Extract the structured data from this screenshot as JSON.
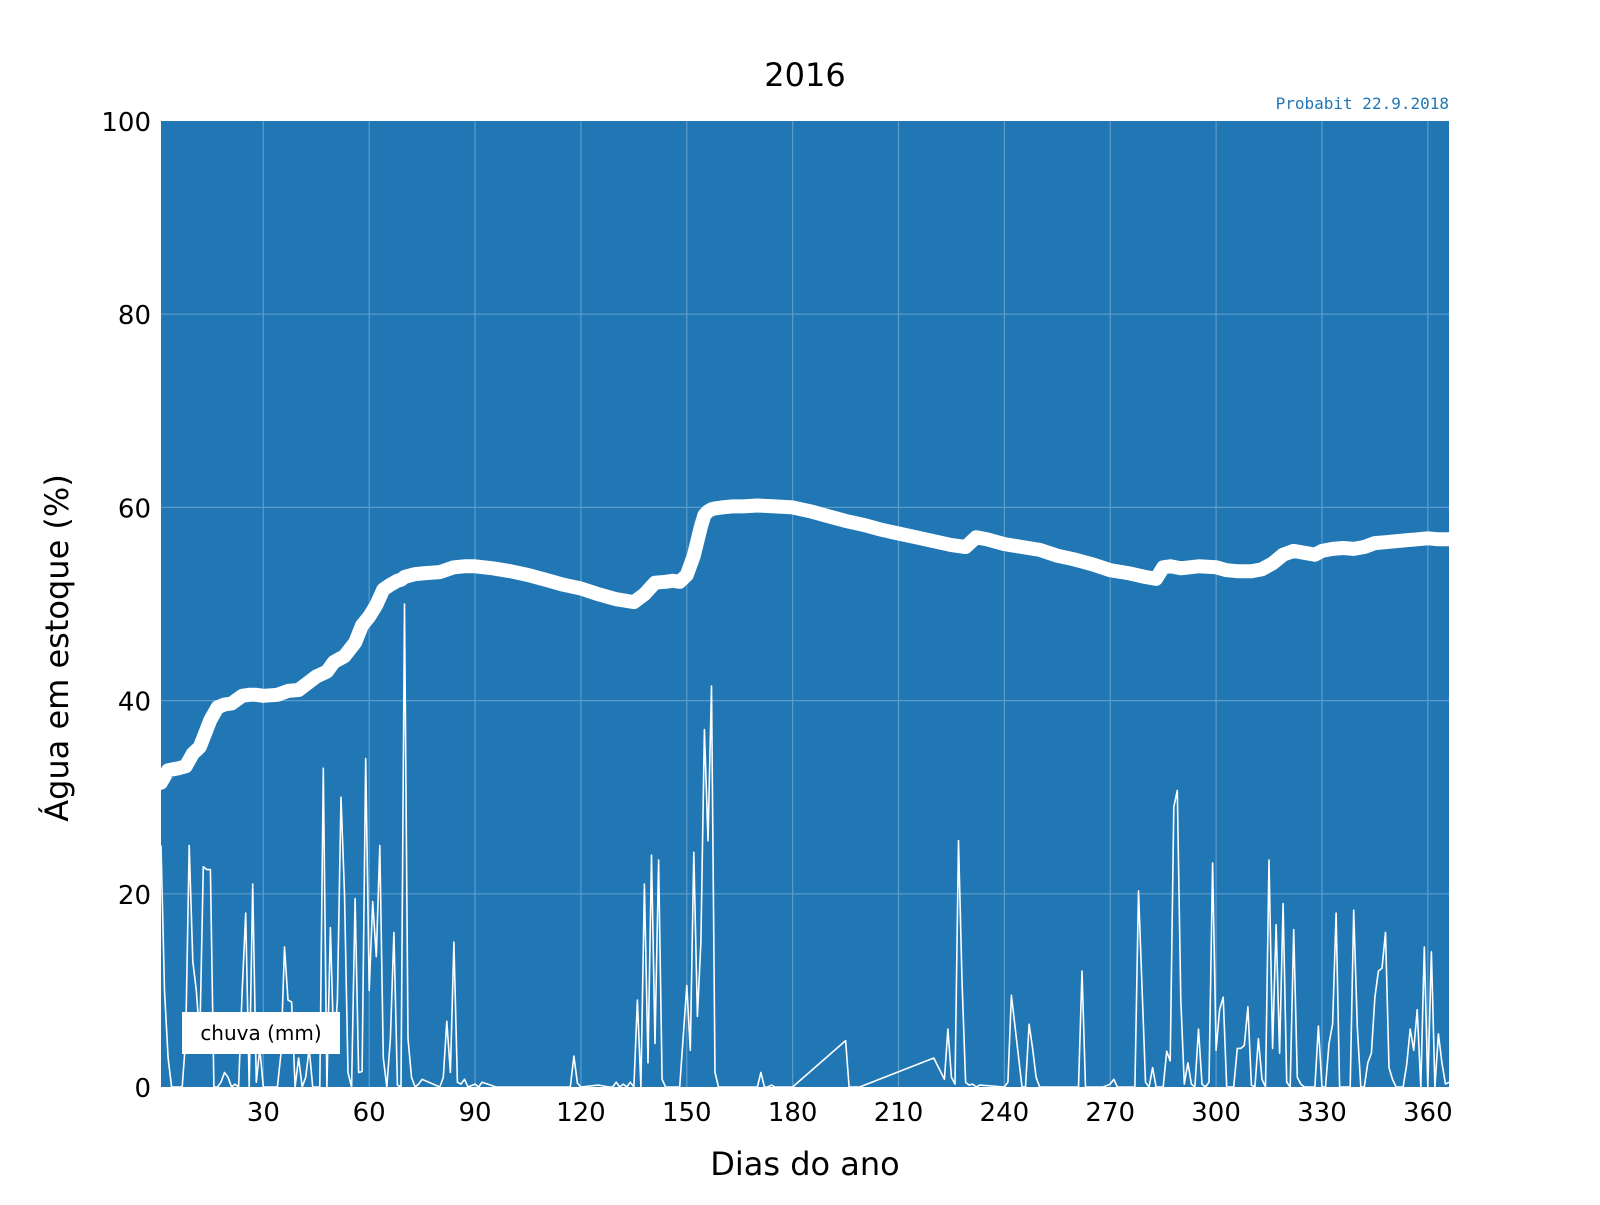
{
  "chart_data": {
    "type": "line",
    "title": "2016",
    "watermark": "Probabit 22.9.2018",
    "xlabel": "Dias do ano",
    "ylabel": "Água em estoque (%)",
    "xlim": [
      1,
      366
    ],
    "ylim": [
      0,
      100
    ],
    "x_ticks": [
      30,
      60,
      90,
      120,
      150,
      180,
      210,
      240,
      270,
      300,
      330,
      360
    ],
    "y_ticks": [
      0,
      20,
      40,
      60,
      80,
      100
    ],
    "grid": true,
    "legend": {
      "position": "bottom-left",
      "entries": [
        "chuva (mm)"
      ]
    },
    "colors": {
      "background": "#2177b4",
      "lines": "#ffffff",
      "grid": "#5b9ccc",
      "watermark": "#2177b4"
    },
    "series": [
      {
        "key": "storage",
        "x": [
          1,
          3,
          6,
          8,
          10,
          12,
          15,
          17,
          19,
          21,
          24,
          26,
          28,
          30,
          34,
          37,
          40,
          45,
          48,
          50,
          53,
          56,
          58,
          60,
          62,
          64,
          66,
          68,
          69,
          70,
          71,
          73,
          76,
          80,
          84,
          87,
          90,
          95,
          100,
          105,
          110,
          115,
          120,
          125,
          130,
          135,
          138,
          141,
          144,
          146,
          148,
          150,
          152,
          154,
          155,
          156,
          157,
          158,
          160,
          163,
          166,
          170,
          175,
          180,
          185,
          190,
          195,
          200,
          205,
          210,
          215,
          220,
          225,
          229,
          232,
          235,
          240,
          245,
          250,
          255,
          260,
          265,
          270,
          275,
          280,
          283,
          285,
          287,
          290,
          295,
          300,
          303,
          306,
          310,
          313,
          316,
          319,
          322,
          325,
          328,
          330,
          333,
          336,
          339,
          342,
          345,
          348,
          351,
          354,
          357,
          360,
          363,
          366
        ],
        "values": [
          31.5,
          32.8,
          33,
          33.2,
          34.5,
          35.2,
          38,
          39.3,
          39.6,
          39.7,
          40.5,
          40.6,
          40.6,
          40.5,
          40.6,
          41,
          41.1,
          42.5,
          43,
          44,
          44.6,
          46,
          47.8,
          48.7,
          49.9,
          51.5,
          52,
          52.4,
          52.5,
          52.8,
          52.9,
          53.1,
          53.2,
          53.3,
          53.8,
          53.9,
          53.9,
          53.7,
          53.4,
          53,
          52.5,
          52,
          51.6,
          51,
          50.5,
          50.2,
          51,
          52.2,
          52.3,
          52.4,
          52.3,
          53,
          55,
          58,
          59.2,
          59.6,
          59.8,
          59.9,
          60,
          60.1,
          60.1,
          60.2,
          60.1,
          60,
          59.6,
          59.1,
          58.6,
          58.2,
          57.7,
          57.3,
          56.9,
          56.5,
          56.1,
          55.9,
          56.9,
          56.7,
          56.2,
          55.9,
          55.6,
          55,
          54.6,
          54.1,
          53.5,
          53.2,
          52.8,
          52.6,
          53.8,
          53.9,
          53.7,
          53.9,
          53.8,
          53.5,
          53.4,
          53.4,
          53.6,
          54.2,
          55.1,
          55.5,
          55.3,
          55.1,
          55.5,
          55.7,
          55.8,
          55.7,
          55.9,
          56.3,
          56.4,
          56.5,
          56.6,
          56.7,
          56.8,
          56.7,
          56.7
        ]
      },
      {
        "key": "rain",
        "name": "chuva (mm)",
        "x": [
          1,
          2,
          3,
          4,
          5,
          6,
          7,
          8,
          9,
          10,
          11,
          12,
          13,
          14,
          15,
          16,
          17,
          18,
          19,
          20,
          21,
          22,
          23,
          24,
          25,
          26,
          27,
          28,
          29,
          30,
          31,
          32,
          33,
          34,
          35,
          36,
          37,
          38,
          39,
          40,
          41,
          42,
          43,
          44,
          45,
          46,
          47,
          48,
          49,
          50,
          51,
          52,
          53,
          54,
          55,
          56,
          57,
          58,
          59,
          60,
          61,
          62,
          63,
          64,
          65,
          66,
          67,
          68,
          69,
          70,
          71,
          72,
          73,
          74,
          75,
          80,
          81,
          82,
          83,
          84,
          85,
          86,
          87,
          88,
          90,
          91,
          92,
          96,
          110,
          116,
          117,
          118,
          119,
          120,
          125,
          128,
          129,
          130,
          131,
          132,
          133,
          134,
          135,
          136,
          137,
          138,
          139,
          140,
          141,
          142,
          143,
          144,
          146,
          148,
          150,
          151,
          152,
          153,
          154,
          155,
          156,
          157,
          158,
          159,
          160,
          161,
          165,
          170,
          171,
          172,
          173,
          174,
          175,
          180,
          195,
          196,
          197,
          198,
          199,
          220,
          223,
          224,
          225,
          226,
          227,
          228,
          229,
          230,
          231,
          232,
          233,
          240,
          241,
          242,
          245,
          246,
          247,
          248,
          249,
          250,
          260,
          261,
          262,
          263,
          264,
          268,
          270,
          271,
          272,
          273,
          274,
          275,
          276,
          277,
          278,
          280,
          281,
          282,
          283,
          284,
          285,
          286,
          287,
          288,
          289,
          290,
          291,
          292,
          293,
          294,
          295,
          296,
          297,
          298,
          299,
          300,
          301,
          302,
          303,
          304,
          305,
          306,
          307,
          308,
          309,
          310,
          311,
          312,
          313,
          314,
          315,
          316,
          317,
          318,
          319,
          320,
          321,
          322,
          323,
          324,
          325,
          326,
          327,
          328,
          329,
          330,
          331,
          332,
          333,
          334,
          335,
          336,
          337,
          338,
          339,
          340,
          341,
          342,
          343,
          344,
          345,
          346,
          347,
          348,
          349,
          350,
          351,
          352,
          353,
          354,
          355,
          356,
          357,
          358,
          359,
          360,
          361,
          362,
          363,
          364,
          365,
          366
        ],
        "values": [
          25,
          10,
          3,
          0,
          0,
          0,
          0,
          5,
          25,
          13,
          10,
          5,
          22.8,
          22.5,
          22.5,
          0,
          0,
          0.5,
          1.5,
          1,
          0,
          0.3,
          0,
          10,
          18,
          0,
          21,
          0.5,
          4,
          0,
          0,
          0,
          0,
          0,
          3.5,
          14.5,
          9,
          8.8,
          0,
          3,
          0,
          1,
          4,
          0,
          0,
          0,
          33,
          0,
          16.5,
          3.5,
          9,
          30,
          20,
          1.5,
          0,
          19.5,
          1.5,
          1.6,
          34,
          10,
          19.2,
          13.5,
          25,
          3,
          0,
          5,
          16,
          0.2,
          0,
          50,
          5,
          1,
          0,
          0.3,
          0.8,
          0,
          1,
          6.8,
          1.5,
          15,
          0.5,
          0.3,
          0.8,
          0,
          0.3,
          0,
          0.5,
          0,
          0,
          0,
          0,
          3.2,
          0.4,
          0,
          0.2,
          0,
          0,
          0.5,
          0,
          0.3,
          0,
          0.5,
          0,
          9,
          0,
          21,
          2.5,
          24,
          4.5,
          23.5,
          0.8,
          0,
          0,
          0,
          10.5,
          3.8,
          24.3,
          7.3,
          15,
          37,
          25.5,
          41.5,
          1.5,
          0,
          0,
          0,
          0,
          0,
          1.5,
          0,
          0,
          0.2,
          0,
          0,
          4.8,
          0,
          0,
          0,
          0,
          3,
          0.8,
          6,
          1,
          0.3,
          25.5,
          11,
          0.5,
          0.2,
          0.3,
          0,
          0.2,
          0,
          0.5,
          9.5,
          0,
          0,
          6.5,
          4,
          1,
          0,
          0,
          0,
          12,
          0,
          0,
          0,
          0.3,
          0.8,
          0,
          0,
          0,
          0,
          0,
          0,
          20.3,
          0.5,
          0,
          2,
          0,
          0,
          0,
          3.7,
          2.7,
          29,
          30.7,
          9,
          0.3,
          2.5,
          0.3,
          0,
          6,
          0.3,
          0,
          0.5,
          23.2,
          3.8,
          8,
          9.3,
          0,
          0,
          0,
          4,
          4,
          4.3,
          8.3,
          0.2,
          0,
          5,
          0.8,
          0,
          23.5,
          4,
          16.8,
          3.5,
          19,
          0.5,
          0,
          16.3,
          1,
          0.3,
          0,
          0,
          0,
          0,
          6.3,
          0,
          0,
          4.5,
          6.5,
          18,
          0,
          0,
          0,
          0,
          18.3,
          6.2,
          0,
          0,
          2.5,
          3.5,
          9.3,
          12,
          12.3,
          16,
          2,
          0.8,
          0,
          0,
          0,
          2.3,
          6,
          3.8,
          8,
          0,
          14.5,
          0,
          14,
          0,
          5.5,
          2.5,
          0.3,
          0.5
        ]
      }
    ]
  }
}
